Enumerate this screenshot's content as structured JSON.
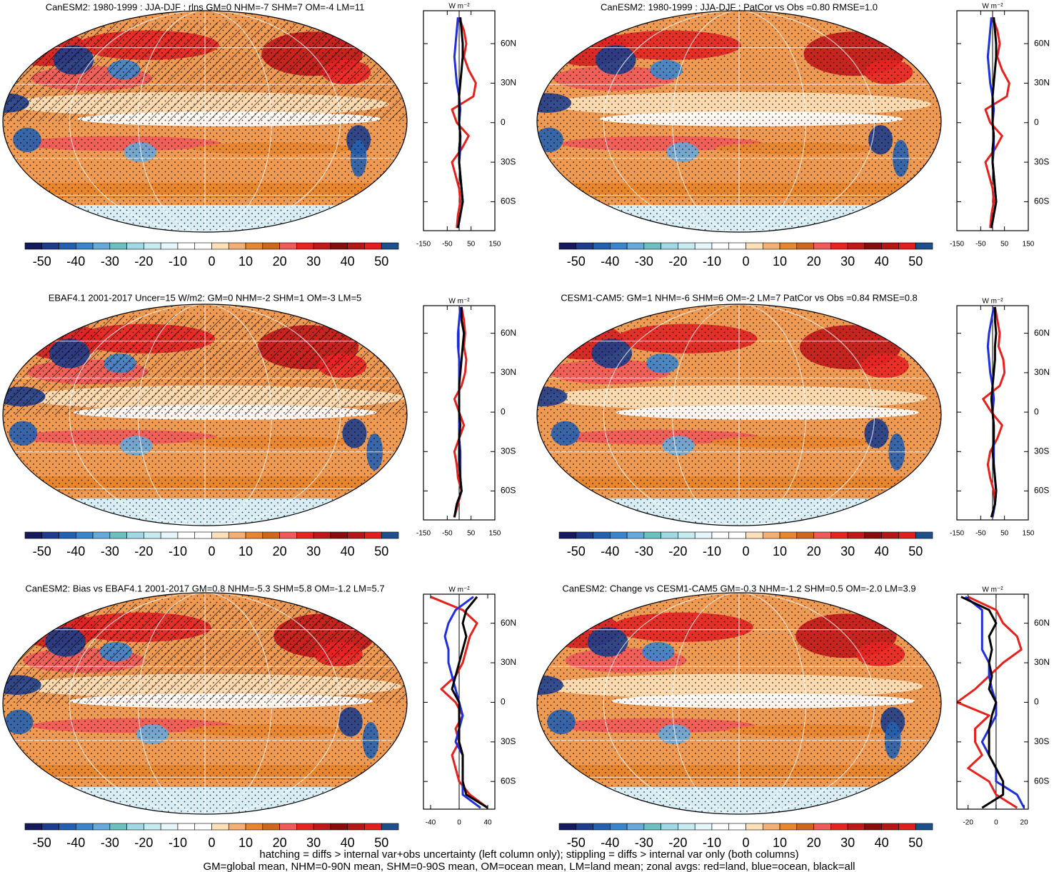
{
  "colorbar": {
    "clim": [
      -55,
      55
    ],
    "ticks": [
      -50,
      -40,
      -30,
      -20,
      -10,
      0,
      10,
      20,
      30,
      40,
      50
    ],
    "colors": [
      "#141a5c",
      "#1d3d8c",
      "#2360b0",
      "#3b85cc",
      "#68a9d9",
      "#6cc0c0",
      "#a0d8e6",
      "#c6ecf2",
      "#e4f6fa",
      "#ffffff",
      "#ffffff",
      "#fde0b8",
      "#f2b077",
      "#e8862e",
      "#d0661b",
      "#f05a5a",
      "#e72424",
      "#c01818",
      "#8a0c0c",
      "#b51616",
      "#e02020",
      "#1d4f8a"
    ]
  },
  "panels": [
    {
      "title": "CanESM2: 1980-1999 : JJA-DJF : rlns GM=0 NHM=-7 SHM=7 OM=-4 LM=11",
      "zonal": {
        "type": "line",
        "unit": "W m⁻²",
        "xlim": [
          -150,
          150
        ],
        "xticks": [
          -150,
          -50,
          50,
          150
        ],
        "ylim": [
          -82,
          85
        ],
        "yticks": [
          {
            "value": 60,
            "label": "60N"
          },
          {
            "value": 30,
            "label": "30N"
          },
          0,
          {
            "value": -30,
            "label": "30S"
          },
          {
            "value": -60,
            "label": "60S"
          }
        ],
        "y": [
          80,
          70,
          60,
          50,
          40,
          30,
          20,
          10,
          0,
          -10,
          -20,
          -30,
          -40,
          -50,
          -60,
          -70,
          -80
        ],
        "series": [
          {
            "color": "#e8201c",
            "values": [
              0,
              20,
              30,
              20,
              40,
              70,
              60,
              -30,
              -10,
              40,
              10,
              -30,
              -15,
              0,
              5,
              -5,
              -10
            ]
          },
          {
            "color": "#1f2fe0",
            "values": [
              -5,
              -10,
              -15,
              -20,
              -15,
              -10,
              0,
              5,
              0,
              5,
              5,
              0,
              5,
              10,
              15,
              5,
              -5
            ]
          },
          {
            "color": "#000000",
            "values": [
              5,
              10,
              15,
              15,
              10,
              5,
              0,
              0,
              0,
              5,
              0,
              0,
              5,
              10,
              15,
              5,
              -5
            ]
          }
        ]
      }
    },
    {
      "title": "CanESM2: 1980-1999 : JJA-DJF : PatCor vs Obs =0.80 RMSE=1.0",
      "zonal": {
        "type": "line",
        "unit": "W m⁻²",
        "xlim": [
          -150,
          150
        ],
        "xticks": [
          -150,
          -50,
          50,
          150
        ],
        "ylim": [
          -82,
          85
        ],
        "yticks": [
          {
            "value": 60,
            "label": "60N"
          },
          {
            "value": 30,
            "label": "30N"
          },
          0,
          {
            "value": -30,
            "label": "30S"
          },
          {
            "value": -60,
            "label": "60S"
          }
        ],
        "y": [
          80,
          70,
          60,
          50,
          40,
          30,
          20,
          10,
          0,
          -10,
          -20,
          -30,
          -40,
          -50,
          -60,
          -70,
          -80
        ],
        "series": [
          {
            "color": "#e8201c",
            "values": [
              0,
              20,
              30,
              20,
              40,
              70,
              60,
              -30,
              -10,
              40,
              10,
              -30,
              -15,
              0,
              5,
              -5,
              -10
            ]
          },
          {
            "color": "#1f2fe0",
            "values": [
              -5,
              -10,
              -15,
              -20,
              -15,
              -10,
              0,
              5,
              0,
              5,
              5,
              0,
              5,
              10,
              15,
              5,
              -5
            ]
          },
          {
            "color": "#000000",
            "values": [
              5,
              10,
              15,
              15,
              10,
              5,
              0,
              0,
              0,
              5,
              0,
              0,
              5,
              10,
              15,
              5,
              -5
            ]
          }
        ]
      }
    },
    {
      "title": "EBAF4.1 2001-2017 Uncer=15 W/m2: GM=0 NHM=-2 SHM=1 OM=-3 LM=5",
      "zonal": {
        "type": "line",
        "unit": "W m⁻²",
        "xlim": [
          -150,
          150
        ],
        "xticks": [
          -150,
          -50,
          50,
          150
        ],
        "ylim": [
          -82,
          81
        ],
        "yticks": [
          {
            "value": 60,
            "label": "60N"
          },
          {
            "value": 30,
            "label": "30N"
          },
          0,
          {
            "value": -30,
            "label": "30S"
          },
          {
            "value": -60,
            "label": "60S"
          }
        ],
        "y": [
          80,
          70,
          60,
          50,
          40,
          30,
          20,
          10,
          0,
          -10,
          -20,
          -30,
          -40,
          -50,
          -60,
          -70,
          -80
        ],
        "series": [
          {
            "color": "#e8201c",
            "values": [
              10,
              20,
              25,
              20,
              30,
              25,
              10,
              -20,
              0,
              20,
              0,
              -20,
              -10,
              -5,
              10,
              -5,
              -20
            ]
          },
          {
            "color": "#1f2fe0",
            "values": [
              5,
              0,
              -5,
              -5,
              0,
              0,
              0,
              0,
              0,
              0,
              0,
              5,
              5,
              5,
              10,
              -10,
              -20
            ]
          },
          {
            "color": "#000000",
            "values": [
              10,
              10,
              20,
              15,
              10,
              5,
              0,
              0,
              0,
              5,
              0,
              0,
              0,
              5,
              10,
              -10,
              -20
            ]
          }
        ]
      }
    },
    {
      "title": "CESM1-CAM5: GM=1 NHM=-6 SHM=6 OM=-2 LM=7 PatCor vs Obs =0.84 RMSE=0.8",
      "zonal": {
        "type": "line",
        "unit": "W m⁻²",
        "xlim": [
          -150,
          150
        ],
        "xticks": [
          -150,
          -50,
          50,
          150
        ],
        "ylim": [
          -82,
          81
        ],
        "yticks": [
          {
            "value": 60,
            "label": "60N"
          },
          {
            "value": 30,
            "label": "30N"
          },
          0,
          {
            "value": -30,
            "label": "30S"
          },
          {
            "value": -60,
            "label": "60S"
          }
        ],
        "y": [
          80,
          70,
          60,
          50,
          40,
          30,
          20,
          10,
          0,
          -10,
          -20,
          -30,
          -40,
          -50,
          -60,
          -70,
          -80
        ],
        "series": [
          {
            "color": "#e8201c",
            "values": [
              10,
              20,
              30,
              25,
              45,
              50,
              30,
              -40,
              -5,
              40,
              20,
              -10,
              -20,
              -10,
              5,
              10,
              -5
            ]
          },
          {
            "color": "#1f2fe0",
            "values": [
              5,
              -5,
              -15,
              -20,
              -15,
              -10,
              0,
              5,
              0,
              5,
              5,
              5,
              5,
              10,
              15,
              10,
              0
            ]
          },
          {
            "color": "#000000",
            "values": [
              10,
              10,
              15,
              10,
              10,
              5,
              0,
              -5,
              0,
              5,
              5,
              0,
              5,
              10,
              15,
              10,
              -5
            ]
          }
        ]
      }
    },
    {
      "title": "CanESM2: Bias vs EBAF4.1 2001-2017 GM=0.8 NHM=-5.3 SHM=5.8 OM=-1.2 LM=5.7",
      "zonal": {
        "type": "line",
        "unit": "W m⁻²",
        "xlim": [
          -50,
          50
        ],
        "xticks": [
          -40,
          0,
          40
        ],
        "ylim": [
          -81,
          82
        ],
        "yticks": [
          {
            "value": 60,
            "label": "60N"
          },
          {
            "value": 30,
            "label": "30N"
          },
          0,
          {
            "value": -30,
            "label": "30S"
          },
          {
            "value": -60,
            "label": "60S"
          }
        ],
        "y": [
          80,
          70,
          60,
          50,
          40,
          30,
          20,
          10,
          0,
          -10,
          -20,
          -30,
          -40,
          -50,
          -60,
          -70,
          -80
        ],
        "series": [
          {
            "color": "#e8201c",
            "values": [
              -40,
              5,
              25,
              15,
              10,
              5,
              -5,
              -25,
              -5,
              5,
              -5,
              0,
              -10,
              -5,
              0,
              15,
              40
            ]
          },
          {
            "color": "#1f2fe0",
            "values": [
              20,
              -5,
              -15,
              -20,
              -15,
              -15,
              -10,
              -5,
              0,
              5,
              0,
              -5,
              5,
              5,
              5,
              5,
              30
            ]
          },
          {
            "color": "#000000",
            "values": [
              25,
              10,
              5,
              10,
              5,
              0,
              -5,
              -10,
              0,
              0,
              0,
              0,
              5,
              5,
              5,
              10,
              40
            ]
          }
        ]
      }
    },
    {
      "title": "CanESM2: Change vs CESM1-CAM5 GM=-0.3 NHM=-1.2 SHM=0.5 OM=-2.0 LM=3.9",
      "zonal": {
        "type": "line",
        "unit": "W m⁻²",
        "xlim": [
          -28,
          23
        ],
        "xticks": [
          -20,
          0,
          20
        ],
        "ylim": [
          -81,
          82
        ],
        "yticks": [
          {
            "value": 60,
            "label": "60N"
          },
          {
            "value": 30,
            "label": "30N"
          },
          0,
          {
            "value": -30,
            "label": "30S"
          },
          {
            "value": -60,
            "label": "60S"
          }
        ],
        "y": [
          80,
          70,
          60,
          50,
          40,
          30,
          20,
          10,
          0,
          -10,
          -20,
          -30,
          -40,
          -50,
          -60,
          -70,
          -80
        ],
        "series": [
          {
            "color": "#e8201c",
            "values": [
              -20,
              0,
              5,
              15,
              18,
              5,
              -5,
              -15,
              -28,
              -5,
              -15,
              -15,
              -10,
              -20,
              -5,
              0,
              15
            ]
          },
          {
            "color": "#1f2fe0",
            "values": [
              -22,
              -10,
              -10,
              -10,
              -10,
              -5,
              -5,
              -3,
              0,
              0,
              -5,
              -10,
              -5,
              0,
              0,
              15,
              20
            ]
          },
          {
            "color": "#000000",
            "values": [
              -25,
              -5,
              0,
              -5,
              -3,
              -5,
              -3,
              -5,
              0,
              -3,
              -5,
              -5,
              -5,
              0,
              5,
              5,
              -10
            ]
          }
        ]
      }
    }
  ],
  "footer": [
    "hatching = diffs > internal var+obs uncertainty (left column only); stippling = diffs > internal var only (both columns)",
    "GM=global mean, NHM=0-90N mean, SHM=0-90S mean, OM=ocean mean, LM=land mean; zonal avgs: red=land, blue=ocean, black=all"
  ]
}
